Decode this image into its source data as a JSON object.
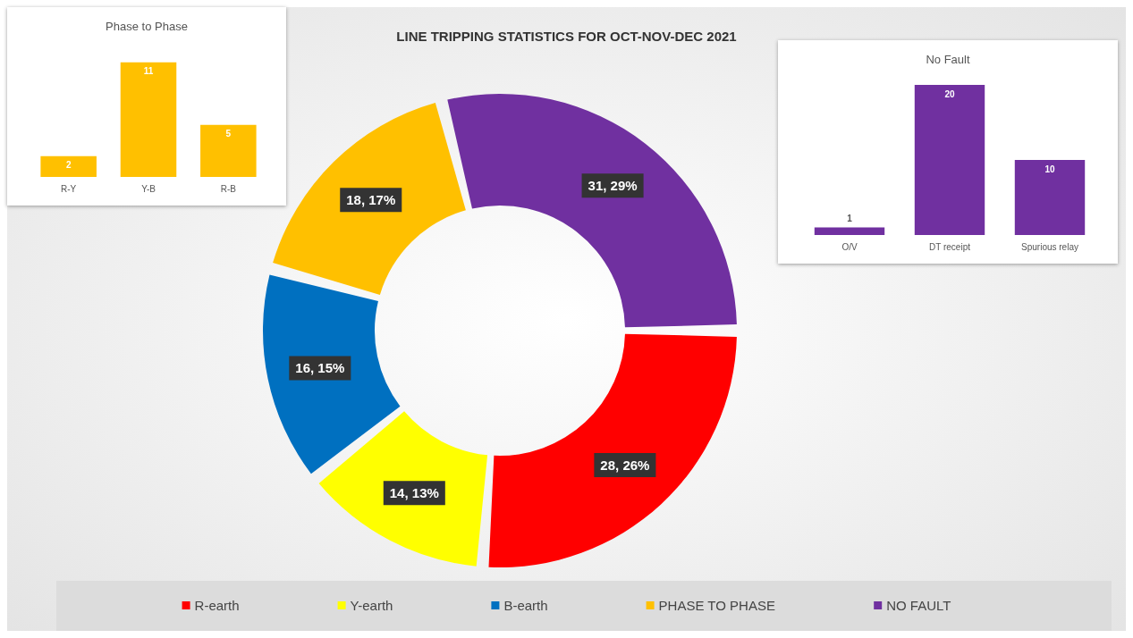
{
  "chart_data": [
    {
      "type": "bar",
      "title": "Phase to Phase",
      "categories": [
        "R-Y",
        "Y-B",
        "R-B"
      ],
      "values": [
        2,
        11,
        5
      ],
      "color": "#ffc000",
      "data_labels": true,
      "tick_labels": "x"
    },
    {
      "type": "donut",
      "title": "LINE TRIPPING STATISTICS FOR OCT-NOV-DEC 2021",
      "categories": [
        "R-earth",
        "Y-earth",
        "B-earth",
        "PHASE TO PHASE",
        "NO FAULT"
      ],
      "values": [
        28,
        14,
        16,
        18,
        31
      ],
      "colors": [
        "#ff0000",
        "#ffff00",
        "#0070c0",
        "#ffc000",
        "#7030a0"
      ],
      "value_labels": [
        "28, 26%",
        "14, 13%",
        "16, 15%",
        "18, 17%",
        "31, 29%"
      ],
      "legend": "bottom"
    },
    {
      "type": "bar",
      "title": "No Fault",
      "categories": [
        "O/V",
        "DT receipt",
        "Spurious relay"
      ],
      "values": [
        1,
        20,
        10
      ],
      "color": "#7030a0",
      "data_labels": true,
      "tick_labels": "x"
    }
  ]
}
